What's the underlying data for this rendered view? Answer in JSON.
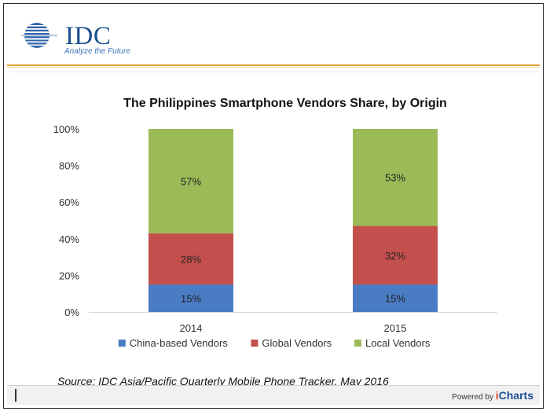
{
  "header": {
    "logo_text": "IDC",
    "logo_tagline": "Analyze the Future"
  },
  "chart_data": {
    "type": "bar",
    "stacked": true,
    "title": "The Philippines Smartphone Vendors Share, by Origin",
    "categories": [
      "2014",
      "2015"
    ],
    "series": [
      {
        "name": "China-based Vendors",
        "values": [
          15,
          15
        ],
        "labels": [
          "15%",
          "15%"
        ],
        "color": "#4a7cc4"
      },
      {
        "name": "Global Vendors",
        "values": [
          28,
          32
        ],
        "labels": [
          "28%",
          "32%"
        ],
        "color": "#c4504d"
      },
      {
        "name": "Local Vendors",
        "values": [
          57,
          53
        ],
        "labels": [
          "57%",
          "53%"
        ],
        "color": "#9bbb59"
      }
    ],
    "yticks": [
      "0%",
      "20%",
      "40%",
      "60%",
      "80%",
      "100%"
    ],
    "ylim": [
      0,
      100
    ],
    "legend": "bottom",
    "grid": false,
    "source": "Source: IDC Asia/Pacific Quarterly Mobile Phone Tracker, May 2016"
  },
  "footer": {
    "powered_by": "Powered by",
    "brand_i": "i",
    "brand_rest": "Charts"
  }
}
